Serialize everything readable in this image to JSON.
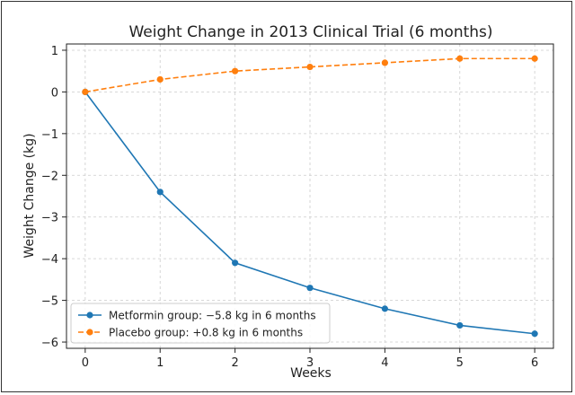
{
  "chart_data": {
    "type": "line",
    "title": "Weight Change in 2013 Clinical Trial (6 months)",
    "xlabel": "Weeks",
    "ylabel": "Weight Change (kg)",
    "xlim": [
      -0.25,
      6.25
    ],
    "ylim": [
      -6.15,
      1.15
    ],
    "x_ticks": [
      0,
      1,
      2,
      3,
      4,
      5,
      6
    ],
    "y_ticks": [
      1,
      0,
      -1,
      -2,
      -3,
      -4,
      -5,
      -6
    ],
    "y_tick_labels": [
      "1",
      "0",
      "−1",
      "−2",
      "−3",
      "−4",
      "−5",
      "−6"
    ],
    "grid": true,
    "legend_position": "lower-left",
    "x": [
      0,
      1,
      2,
      3,
      4,
      5,
      6
    ],
    "series": [
      {
        "name": "Metformin group: −5.8 kg in 6 months",
        "values": [
          0,
          -2.4,
          -4.1,
          -4.7,
          -5.2,
          -5.6,
          -5.8
        ],
        "color": "#1f77b4",
        "line_style": "solid"
      },
      {
        "name": "Placebo group: +0.8 kg in 6 months",
        "values": [
          0,
          0.3,
          0.5,
          0.6,
          0.7,
          0.8,
          0.8
        ],
        "color": "#ff7f0e",
        "line_style": "dashed"
      }
    ]
  }
}
